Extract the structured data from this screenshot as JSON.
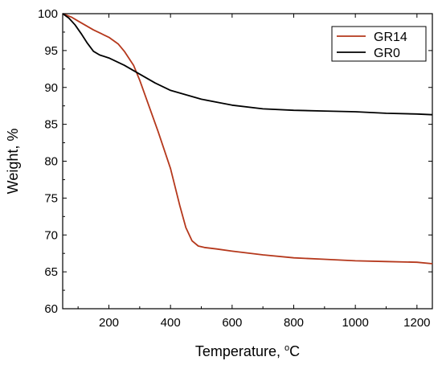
{
  "chart_data": {
    "type": "line",
    "xlabel_main": "Temperature, ",
    "xlabel_sup": "o",
    "xlabel_unit": "C",
    "ylabel": "Weight, %",
    "xlim": [
      50,
      1250
    ],
    "ylim": [
      60,
      100
    ],
    "xticks": [
      "200",
      "400",
      "600",
      "800",
      "1000",
      "1200"
    ],
    "yticks": [
      "60",
      "65",
      "70",
      "75",
      "80",
      "85",
      "90",
      "95",
      "100"
    ],
    "grid": false,
    "legend_position": "top-right",
    "series": [
      {
        "name": "GR14",
        "color": "#b5381c",
        "x": [
          50,
          80,
          100,
          150,
          200,
          230,
          250,
          280,
          300,
          330,
          360,
          400,
          430,
          450,
          470,
          490,
          510,
          550,
          600,
          700,
          800,
          900,
          1000,
          1100,
          1200,
          1250
        ],
        "y": [
          100,
          99.5,
          99.0,
          97.8,
          96.8,
          95.9,
          94.9,
          93.0,
          91.0,
          87.5,
          84.0,
          79.0,
          74.0,
          71.0,
          69.2,
          68.5,
          68.3,
          68.1,
          67.8,
          67.3,
          66.9,
          66.7,
          66.5,
          66.4,
          66.3,
          66.1
        ]
      },
      {
        "name": "GR0",
        "color": "#000000",
        "x": [
          50,
          70,
          90,
          110,
          130,
          150,
          170,
          200,
          250,
          300,
          350,
          400,
          450,
          500,
          600,
          700,
          800,
          900,
          1000,
          1100,
          1200,
          1250
        ],
        "y": [
          100,
          99.4,
          98.5,
          97.3,
          96.0,
          94.9,
          94.4,
          94.0,
          93.0,
          91.8,
          90.6,
          89.6,
          89.0,
          88.4,
          87.6,
          87.1,
          86.9,
          86.8,
          86.7,
          86.5,
          86.4,
          86.3
        ]
      }
    ]
  }
}
